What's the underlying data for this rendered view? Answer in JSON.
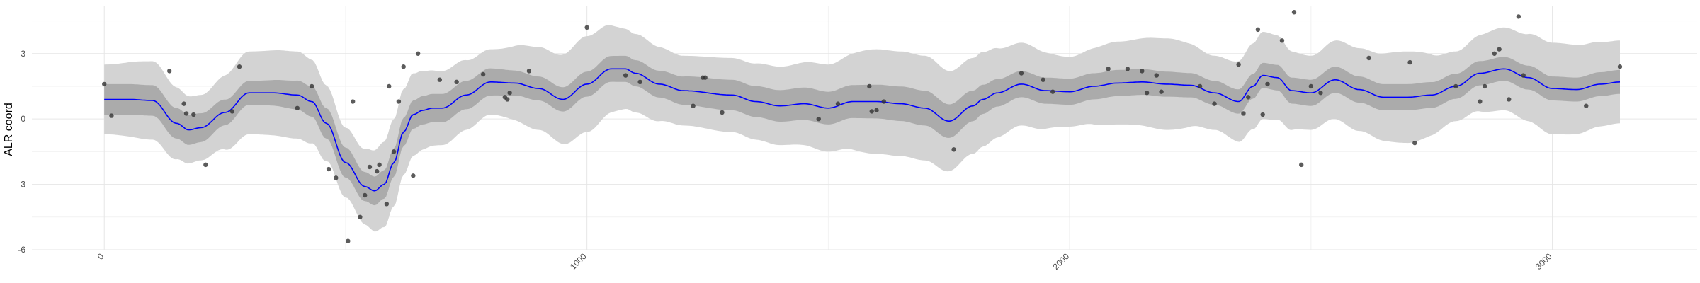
{
  "chart_data": {
    "type": "line",
    "title": "",
    "xlabel": "",
    "ylabel": "ALR coord",
    "xlim": [
      -150,
      3300
    ],
    "ylim": [
      -6,
      5.2
    ],
    "grid": true,
    "legend": "none",
    "x_ticks": [
      {
        "value": 0,
        "label": "0"
      },
      {
        "value": 1000,
        "label": "1000"
      },
      {
        "value": 2000,
        "label": "2000"
      },
      {
        "value": 3000,
        "label": "3000"
      }
    ],
    "y_ticks": [
      {
        "value": 3,
        "label": "3"
      },
      {
        "value": 0,
        "label": "0"
      },
      {
        "value": -3,
        "label": "-3"
      },
      {
        "value": -6,
        "label": "-6"
      }
    ],
    "colors": {
      "mean_line": "#0000ff",
      "inner_band": "#ababab",
      "outer_band": "#d3d3d3",
      "points": "#333333"
    },
    "mean": {
      "x": [
        0,
        50,
        100,
        150,
        175,
        200,
        250,
        300,
        350,
        400,
        430,
        460,
        500,
        540,
        560,
        580,
        600,
        620,
        640,
        660,
        680,
        700,
        750,
        800,
        850,
        900,
        950,
        1000,
        1050,
        1080,
        1100,
        1150,
        1200,
        1300,
        1350,
        1400,
        1450,
        1500,
        1550,
        1600,
        1650,
        1700,
        1750,
        1800,
        1820,
        1850,
        1900,
        1950,
        2000,
        2050,
        2100,
        2150,
        2200,
        2250,
        2300,
        2350,
        2380,
        2400,
        2430,
        2460,
        2500,
        2550,
        2600,
        2650,
        2700,
        2750,
        2800,
        2850,
        2900,
        2950,
        3000,
        3050,
        3100,
        3140
      ],
      "y": [
        0.9,
        0.9,
        0.85,
        -0.2,
        -0.5,
        -0.4,
        0.3,
        1.2,
        1.2,
        1.1,
        0.8,
        -0.2,
        -2.0,
        -3.1,
        -3.3,
        -3.0,
        -2.0,
        -0.6,
        0.2,
        0.4,
        0.5,
        0.5,
        1.1,
        1.7,
        1.65,
        1.4,
        0.9,
        1.6,
        2.3,
        2.3,
        2.1,
        1.6,
        1.3,
        1.1,
        0.8,
        0.6,
        0.7,
        0.5,
        0.8,
        0.8,
        0.7,
        0.5,
        -0.1,
        0.6,
        0.9,
        1.2,
        1.6,
        1.3,
        1.25,
        1.5,
        1.65,
        1.7,
        1.6,
        1.55,
        1.2,
        0.8,
        1.5,
        2.0,
        1.9,
        1.3,
        1.2,
        1.8,
        1.35,
        1.0,
        1.0,
        1.1,
        1.5,
        2.1,
        2.3,
        1.9,
        1.4,
        1.35,
        1.6,
        1.7
      ]
    },
    "inner_band": {
      "halfwidth_x": [
        0,
        150,
        300,
        450,
        600,
        750,
        900,
        1100,
        1300,
        1500,
        1700,
        1900,
        2100,
        2300,
        2500,
        2700,
        2900,
        3140
      ],
      "halfwidth": [
        0.7,
        0.7,
        0.55,
        0.7,
        0.65,
        0.65,
        0.55,
        0.6,
        0.7,
        0.75,
        0.8,
        0.6,
        0.6,
        0.55,
        0.6,
        0.6,
        0.55,
        0.55
      ]
    },
    "outer_band": {
      "halfwidth_x": [
        0,
        100,
        200,
        300,
        400,
        500,
        600,
        700,
        800,
        900,
        1000,
        1100,
        1200,
        1300,
        1400,
        1500,
        1600,
        1700,
        1800,
        1900,
        2000,
        2100,
        2200,
        2300,
        2400,
        2500,
        2600,
        2700,
        2800,
        2900,
        3000,
        3140
      ],
      "halfwidth": [
        1.6,
        1.8,
        1.5,
        1.9,
        2.0,
        1.6,
        2.0,
        1.7,
        1.5,
        1.9,
        2.2,
        1.8,
        1.6,
        1.7,
        1.8,
        2.0,
        2.4,
        2.4,
        2.2,
        1.9,
        1.6,
        1.9,
        2.1,
        1.7,
        2.0,
        1.7,
        1.9,
        2.1,
        1.6,
        1.9,
        2.1,
        1.9
      ]
    },
    "points": {
      "x": [
        0,
        15,
        135,
        165,
        170,
        185,
        210,
        265,
        280,
        400,
        430,
        465,
        480,
        505,
        515,
        530,
        540,
        550,
        565,
        570,
        585,
        590,
        600,
        610,
        620,
        640,
        650,
        695,
        730,
        785,
        830,
        835,
        840,
        880,
        1000,
        1080,
        1110,
        1220,
        1240,
        1245,
        1280,
        1480,
        1520,
        1585,
        1590,
        1600,
        1615,
        1760,
        1900,
        1945,
        1965,
        2080,
        2120,
        2150,
        2160,
        2180,
        2190,
        2270,
        2300,
        2350,
        2360,
        2370,
        2390,
        2400,
        2410,
        2440,
        2465,
        2480,
        2500,
        2520,
        2620,
        2705,
        2715,
        2800,
        2850,
        2860,
        2880,
        2890,
        2910,
        2930,
        2940,
        3070,
        3140
      ],
      "y": [
        1.6,
        0.15,
        2.2,
        0.7,
        0.25,
        0.2,
        -2.1,
        0.35,
        2.4,
        0.5,
        1.5,
        -2.3,
        -2.7,
        -5.6,
        0.8,
        -4.5,
        -3.5,
        -2.2,
        -2.4,
        -2.1,
        -3.9,
        1.5,
        -1.5,
        0.8,
        2.4,
        -2.6,
        3.0,
        1.8,
        1.7,
        2.05,
        1.0,
        0.9,
        1.2,
        2.2,
        4.2,
        2.0,
        1.7,
        0.6,
        1.9,
        1.9,
        0.3,
        0.0,
        0.7,
        1.5,
        0.35,
        0.4,
        0.8,
        -1.4,
        2.1,
        1.8,
        1.25,
        2.3,
        2.3,
        2.2,
        1.2,
        2.0,
        1.25,
        1.5,
        0.7,
        2.5,
        0.25,
        1.0,
        4.1,
        0.2,
        1.6,
        3.6,
        4.9,
        -2.1,
        1.5,
        1.2,
        2.8,
        2.6,
        -1.1,
        1.5,
        0.8,
        1.5,
        3.0,
        3.2,
        0.9,
        4.7,
        2.0,
        0.6,
        2.4
      ]
    }
  }
}
